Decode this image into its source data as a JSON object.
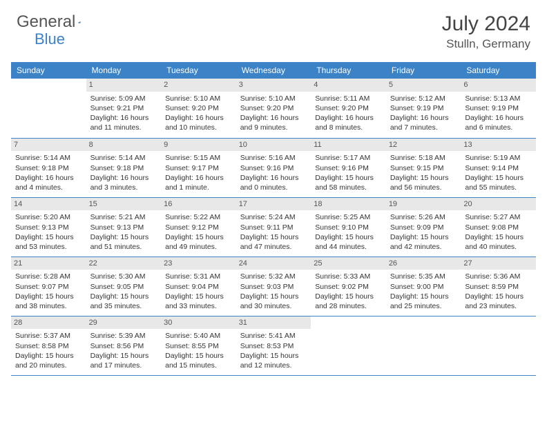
{
  "brand": {
    "part1": "General",
    "part2": "Blue"
  },
  "title": "July 2024",
  "location": "Stulln, Germany",
  "colors": {
    "accent": "#3b82c7",
    "daybar": "#e8e8e8",
    "text": "#333333"
  },
  "dayNames": [
    "Sunday",
    "Monday",
    "Tuesday",
    "Wednesday",
    "Thursday",
    "Friday",
    "Saturday"
  ],
  "weeks": [
    [
      null,
      {
        "n": "1",
        "sr": "Sunrise: 5:09 AM",
        "ss": "Sunset: 9:21 PM",
        "dl": "Daylight: 16 hours and 11 minutes."
      },
      {
        "n": "2",
        "sr": "Sunrise: 5:10 AM",
        "ss": "Sunset: 9:20 PM",
        "dl": "Daylight: 16 hours and 10 minutes."
      },
      {
        "n": "3",
        "sr": "Sunrise: 5:10 AM",
        "ss": "Sunset: 9:20 PM",
        "dl": "Daylight: 16 hours and 9 minutes."
      },
      {
        "n": "4",
        "sr": "Sunrise: 5:11 AM",
        "ss": "Sunset: 9:20 PM",
        "dl": "Daylight: 16 hours and 8 minutes."
      },
      {
        "n": "5",
        "sr": "Sunrise: 5:12 AM",
        "ss": "Sunset: 9:19 PM",
        "dl": "Daylight: 16 hours and 7 minutes."
      },
      {
        "n": "6",
        "sr": "Sunrise: 5:13 AM",
        "ss": "Sunset: 9:19 PM",
        "dl": "Daylight: 16 hours and 6 minutes."
      }
    ],
    [
      {
        "n": "7",
        "sr": "Sunrise: 5:14 AM",
        "ss": "Sunset: 9:18 PM",
        "dl": "Daylight: 16 hours and 4 minutes."
      },
      {
        "n": "8",
        "sr": "Sunrise: 5:14 AM",
        "ss": "Sunset: 9:18 PM",
        "dl": "Daylight: 16 hours and 3 minutes."
      },
      {
        "n": "9",
        "sr": "Sunrise: 5:15 AM",
        "ss": "Sunset: 9:17 PM",
        "dl": "Daylight: 16 hours and 1 minute."
      },
      {
        "n": "10",
        "sr": "Sunrise: 5:16 AM",
        "ss": "Sunset: 9:16 PM",
        "dl": "Daylight: 16 hours and 0 minutes."
      },
      {
        "n": "11",
        "sr": "Sunrise: 5:17 AM",
        "ss": "Sunset: 9:16 PM",
        "dl": "Daylight: 15 hours and 58 minutes."
      },
      {
        "n": "12",
        "sr": "Sunrise: 5:18 AM",
        "ss": "Sunset: 9:15 PM",
        "dl": "Daylight: 15 hours and 56 minutes."
      },
      {
        "n": "13",
        "sr": "Sunrise: 5:19 AM",
        "ss": "Sunset: 9:14 PM",
        "dl": "Daylight: 15 hours and 55 minutes."
      }
    ],
    [
      {
        "n": "14",
        "sr": "Sunrise: 5:20 AM",
        "ss": "Sunset: 9:13 PM",
        "dl": "Daylight: 15 hours and 53 minutes."
      },
      {
        "n": "15",
        "sr": "Sunrise: 5:21 AM",
        "ss": "Sunset: 9:13 PM",
        "dl": "Daylight: 15 hours and 51 minutes."
      },
      {
        "n": "16",
        "sr": "Sunrise: 5:22 AM",
        "ss": "Sunset: 9:12 PM",
        "dl": "Daylight: 15 hours and 49 minutes."
      },
      {
        "n": "17",
        "sr": "Sunrise: 5:24 AM",
        "ss": "Sunset: 9:11 PM",
        "dl": "Daylight: 15 hours and 47 minutes."
      },
      {
        "n": "18",
        "sr": "Sunrise: 5:25 AM",
        "ss": "Sunset: 9:10 PM",
        "dl": "Daylight: 15 hours and 44 minutes."
      },
      {
        "n": "19",
        "sr": "Sunrise: 5:26 AM",
        "ss": "Sunset: 9:09 PM",
        "dl": "Daylight: 15 hours and 42 minutes."
      },
      {
        "n": "20",
        "sr": "Sunrise: 5:27 AM",
        "ss": "Sunset: 9:08 PM",
        "dl": "Daylight: 15 hours and 40 minutes."
      }
    ],
    [
      {
        "n": "21",
        "sr": "Sunrise: 5:28 AM",
        "ss": "Sunset: 9:07 PM",
        "dl": "Daylight: 15 hours and 38 minutes."
      },
      {
        "n": "22",
        "sr": "Sunrise: 5:30 AM",
        "ss": "Sunset: 9:05 PM",
        "dl": "Daylight: 15 hours and 35 minutes."
      },
      {
        "n": "23",
        "sr": "Sunrise: 5:31 AM",
        "ss": "Sunset: 9:04 PM",
        "dl": "Daylight: 15 hours and 33 minutes."
      },
      {
        "n": "24",
        "sr": "Sunrise: 5:32 AM",
        "ss": "Sunset: 9:03 PM",
        "dl": "Daylight: 15 hours and 30 minutes."
      },
      {
        "n": "25",
        "sr": "Sunrise: 5:33 AM",
        "ss": "Sunset: 9:02 PM",
        "dl": "Daylight: 15 hours and 28 minutes."
      },
      {
        "n": "26",
        "sr": "Sunrise: 5:35 AM",
        "ss": "Sunset: 9:00 PM",
        "dl": "Daylight: 15 hours and 25 minutes."
      },
      {
        "n": "27",
        "sr": "Sunrise: 5:36 AM",
        "ss": "Sunset: 8:59 PM",
        "dl": "Daylight: 15 hours and 23 minutes."
      }
    ],
    [
      {
        "n": "28",
        "sr": "Sunrise: 5:37 AM",
        "ss": "Sunset: 8:58 PM",
        "dl": "Daylight: 15 hours and 20 minutes."
      },
      {
        "n": "29",
        "sr": "Sunrise: 5:39 AM",
        "ss": "Sunset: 8:56 PM",
        "dl": "Daylight: 15 hours and 17 minutes."
      },
      {
        "n": "30",
        "sr": "Sunrise: 5:40 AM",
        "ss": "Sunset: 8:55 PM",
        "dl": "Daylight: 15 hours and 15 minutes."
      },
      {
        "n": "31",
        "sr": "Sunrise: 5:41 AM",
        "ss": "Sunset: 8:53 PM",
        "dl": "Daylight: 15 hours and 12 minutes."
      },
      null,
      null,
      null
    ]
  ]
}
